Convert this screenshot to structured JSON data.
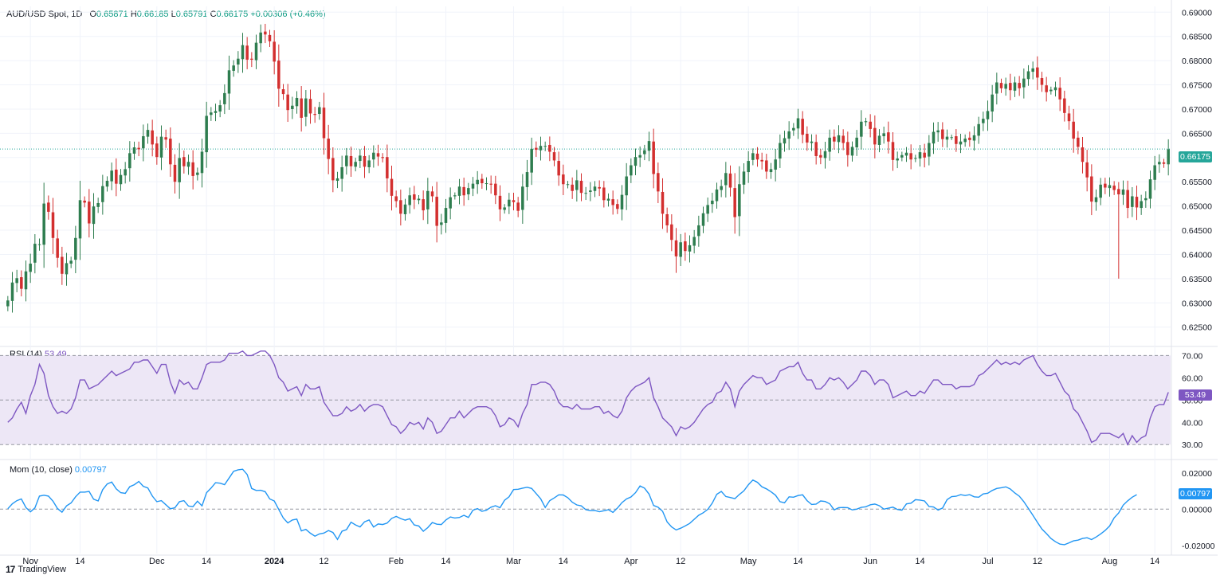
{
  "header": {
    "symbol": "AUD/USD Spot, 1D",
    "open_label": "O",
    "open": "0.65871",
    "high_label": "H",
    "high": "0.66185",
    "low_label": "L",
    "low": "0.65791",
    "close_label": "C",
    "close": "0.66175",
    "change": "+0.00306 (+0.46%)"
  },
  "rsi_header": {
    "label": "RSI (14)",
    "value": "53.49"
  },
  "mom_header": {
    "label": "Mom (10, close)",
    "value": "0.00797"
  },
  "last_price_tag": "0.66175",
  "rsi_tag": "53.49",
  "mom_tag": "0.00797",
  "branding": "TradingView",
  "colors": {
    "up": "#26a69a",
    "up_dark": "#2e7d4f",
    "down": "#ef5350",
    "down_dark": "#d32f2f",
    "rsi": "#7e57c2",
    "rsi_band": "#ede7f6",
    "mom": "#2196f3",
    "grid": "#f0f3fa",
    "axis_text": "#131722"
  },
  "chart_data": [
    {
      "type": "candlestick",
      "title": "AUD/USD Spot, 1D",
      "y_ticks": [
        "0.69000",
        "0.68500",
        "0.68000",
        "0.67500",
        "0.67000",
        "0.66500",
        "0.66000",
        "0.65500",
        "0.65000",
        "0.64500",
        "0.64000",
        "0.63500",
        "0.63000",
        "0.62500"
      ],
      "ylim": [
        0.6215,
        0.6912
      ],
      "x_ticks": [
        "Nov",
        "14",
        "Dec",
        "14",
        "2024",
        "12",
        "Feb",
        "14",
        "Mar",
        "14",
        "Apr",
        "12",
        "May",
        "14",
        "Jun",
        "14",
        "Jul",
        "12",
        "Aug",
        "14"
      ],
      "x_tick_bar_index": [
        5,
        16,
        33,
        44,
        59,
        70,
        86,
        97,
        112,
        123,
        138,
        149,
        164,
        175,
        191,
        202,
        217,
        228,
        244,
        254
      ],
      "last_price": 0.66175,
      "closes": [
        0.6305,
        0.6342,
        0.6351,
        0.6329,
        0.6365,
        0.6381,
        0.6422,
        0.6421,
        0.6505,
        0.6488,
        0.6434,
        0.6393,
        0.636,
        0.6382,
        0.6387,
        0.6434,
        0.6512,
        0.6507,
        0.6464,
        0.6499,
        0.6506,
        0.6541,
        0.6552,
        0.6573,
        0.6546,
        0.6564,
        0.6576,
        0.6609,
        0.6621,
        0.6617,
        0.6644,
        0.6657,
        0.6627,
        0.6601,
        0.6643,
        0.6637,
        0.6586,
        0.655,
        0.6599,
        0.6582,
        0.6591,
        0.6562,
        0.6569,
        0.6612,
        0.6686,
        0.6693,
        0.6696,
        0.6708,
        0.6733,
        0.678,
        0.679,
        0.6804,
        0.6832,
        0.6802,
        0.6802,
        0.6837,
        0.6858,
        0.6854,
        0.684,
        0.6798,
        0.6742,
        0.6731,
        0.6698,
        0.6707,
        0.6723,
        0.6682,
        0.6722,
        0.6691,
        0.6688,
        0.6704,
        0.664,
        0.6597,
        0.6553,
        0.6557,
        0.658,
        0.6604,
        0.6582,
        0.6591,
        0.6604,
        0.6581,
        0.6594,
        0.661,
        0.6602,
        0.6599,
        0.6557,
        0.6521,
        0.651,
        0.6484,
        0.6503,
        0.6522,
        0.6513,
        0.6515,
        0.6491,
        0.6531,
        0.652,
        0.6459,
        0.6466,
        0.6496,
        0.6518,
        0.6522,
        0.654,
        0.6522,
        0.6537,
        0.6546,
        0.6554,
        0.6547,
        0.6547,
        0.6544,
        0.6522,
        0.6493,
        0.6497,
        0.6513,
        0.6508,
        0.649,
        0.654,
        0.657,
        0.6618,
        0.6616,
        0.6624,
        0.6624,
        0.6612,
        0.6594,
        0.6563,
        0.6545,
        0.6545,
        0.6531,
        0.6553,
        0.6527,
        0.6527,
        0.6532,
        0.654,
        0.6536,
        0.6512,
        0.6515,
        0.6502,
        0.6494,
        0.6523,
        0.6561,
        0.6584,
        0.6601,
        0.6605,
        0.6615,
        0.6634,
        0.6566,
        0.653,
        0.6484,
        0.646,
        0.643,
        0.6396,
        0.6425,
        0.6407,
        0.6419,
        0.6436,
        0.646,
        0.6485,
        0.6502,
        0.6511,
        0.6534,
        0.6541,
        0.6568,
        0.6538,
        0.6477,
        0.6545,
        0.6571,
        0.6593,
        0.6609,
        0.6596,
        0.6592,
        0.6571,
        0.6576,
        0.6596,
        0.663,
        0.664,
        0.6654,
        0.6661,
        0.6681,
        0.6647,
        0.6631,
        0.6633,
        0.6603,
        0.66,
        0.6613,
        0.6641,
        0.6633,
        0.6646,
        0.663,
        0.6605,
        0.6622,
        0.6641,
        0.6674,
        0.6675,
        0.6659,
        0.6627,
        0.6645,
        0.665,
        0.6633,
        0.6595,
        0.6598,
        0.6605,
        0.661,
        0.6596,
        0.6599,
        0.6611,
        0.66,
        0.663,
        0.6653,
        0.6656,
        0.6638,
        0.6643,
        0.6642,
        0.6628,
        0.6633,
        0.6639,
        0.6636,
        0.6646,
        0.6669,
        0.668,
        0.6696,
        0.673,
        0.6755,
        0.6743,
        0.6752,
        0.6739,
        0.6755,
        0.6743,
        0.6763,
        0.6778,
        0.6784,
        0.6765,
        0.675,
        0.6735,
        0.674,
        0.6745,
        0.672,
        0.6692,
        0.6675,
        0.6639,
        0.6622,
        0.6591,
        0.6559,
        0.6509,
        0.6518,
        0.6544,
        0.6538,
        0.6543,
        0.6533,
        0.6524,
        0.6534,
        0.6496,
        0.652,
        0.6497,
        0.651,
        0.6516,
        0.6555,
        0.6584,
        0.6591,
        0.6587,
        0.6617
      ]
    },
    {
      "type": "line",
      "title": "RSI (14)",
      "last_value": 53.49,
      "band": [
        30,
        70
      ],
      "midline": 50,
      "ylim": [
        24,
        73
      ],
      "y_ticks": [
        "70.00",
        "60.00",
        "50.00",
        "40.00",
        "30.00"
      ],
      "values": [
        40,
        42,
        46,
        49,
        44,
        52,
        57,
        66,
        62,
        52,
        47,
        44,
        45,
        44,
        46,
        51,
        59,
        59,
        55,
        56,
        57,
        59,
        61,
        63,
        61,
        62,
        63,
        64,
        67,
        67,
        68,
        68,
        65,
        62,
        66,
        66,
        58,
        53,
        59,
        57,
        58,
        55,
        55,
        60,
        66,
        67,
        67,
        67,
        68,
        71,
        71,
        71,
        72,
        70,
        70,
        71,
        72,
        72,
        70,
        66,
        60,
        58,
        54,
        55,
        56,
        52,
        57,
        55,
        55,
        56,
        49,
        46,
        43,
        43,
        44,
        47,
        45,
        46,
        48,
        45,
        47,
        48,
        48,
        47,
        43,
        39,
        38,
        35,
        37,
        40,
        39,
        40,
        37,
        42,
        40,
        35,
        36,
        39,
        42,
        42,
        45,
        42,
        44,
        46,
        47,
        47,
        47,
        46,
        43,
        38,
        39,
        42,
        41,
        38,
        44,
        48,
        57,
        57,
        58,
        58,
        57,
        54,
        49,
        47,
        47,
        46,
        48,
        46,
        46,
        46,
        47,
        47,
        44,
        45,
        43,
        42,
        45,
        51,
        54,
        56,
        57,
        58,
        60,
        51,
        47,
        42,
        40,
        38,
        34,
        38,
        37,
        38,
        40,
        43,
        46,
        48,
        49,
        53,
        54,
        58,
        55,
        47,
        54,
        57,
        59,
        61,
        60,
        60,
        57,
        58,
        59,
        63,
        64,
        65,
        65,
        67,
        62,
        59,
        59,
        55,
        55,
        57,
        60,
        59,
        60,
        58,
        55,
        57,
        59,
        63,
        63,
        61,
        57,
        59,
        59,
        57,
        51,
        52,
        53,
        54,
        52,
        52,
        54,
        53,
        56,
        59,
        59,
        57,
        57,
        57,
        55,
        56,
        56,
        56,
        57,
        61,
        62,
        64,
        66,
        68,
        66,
        67,
        66,
        67,
        66,
        68,
        69,
        70,
        66,
        63,
        61,
        61,
        62,
        58,
        54,
        52,
        46,
        44,
        40,
        36,
        31,
        32,
        35,
        35,
        35,
        34,
        33,
        35,
        30,
        34,
        31,
        33,
        34,
        42,
        47,
        48,
        48,
        53.49
      ]
    },
    {
      "type": "line",
      "title": "Mom (10, close)",
      "last_value": 0.00797,
      "zero_line": 0,
      "ylim": [
        -0.0245,
        0.0265
      ],
      "y_ticks": [
        "0.02000",
        "0.00000",
        "-0.02000"
      ],
      "values": [
        0.0002,
        0.003,
        0.0047,
        0.0056,
        0.0009,
        -0.0015,
        0.0007,
        0.0072,
        0.0077,
        0.0072,
        0.0044,
        0.0003,
        -0.0017,
        0.0018,
        0.0034,
        0.0068,
        0.0094,
        0.0094,
        0.0098,
        0.0055,
        0.0045,
        0.0107,
        0.0139,
        0.015,
        0.0112,
        0.0091,
        0.0087,
        0.0124,
        0.0135,
        0.0153,
        0.0126,
        0.0117,
        0.0072,
        0.0041,
        0.0047,
        0.0024,
        0.0002,
        0.0008,
        0.0041,
        0.0047,
        0.0017,
        0.0014,
        0.0044,
        0.0018,
        0.0091,
        0.0116,
        0.0146,
        0.0143,
        0.0135,
        0.0172,
        0.0209,
        0.0217,
        0.022,
        0.0191,
        0.0114,
        0.0103,
        0.0104,
        0.0096,
        0.0056,
        0.0045,
        -0.0002,
        -0.0049,
        -0.0076,
        -0.006,
        -0.0055,
        -0.012,
        -0.0112,
        -0.0133,
        -0.0149,
        -0.0137,
        -0.0132,
        -0.0118,
        -0.0129,
        -0.0167,
        -0.0122,
        -0.0113,
        -0.0072,
        -0.0087,
        -0.0098,
        -0.007,
        -0.006,
        -0.0099,
        -0.0082,
        -0.0085,
        -0.0077,
        -0.0051,
        -0.004,
        -0.0052,
        -0.0061,
        -0.0053,
        -0.0087,
        -0.0093,
        -0.0122,
        -0.0102,
        -0.0074,
        -0.0083,
        -0.0085,
        -0.006,
        -0.0043,
        -0.0049,
        -0.0046,
        -0.0034,
        -0.0046,
        -0.0006,
        0.0003,
        -0.0012,
        -0.0006,
        0.0011,
        0.0019,
        0.0008,
        0.0049,
        0.0068,
        0.0108,
        0.011,
        0.0116,
        0.0121,
        0.0114,
        0.0086,
        0.0057,
        0.0009,
        0.0047,
        0.0062,
        0.0079,
        0.0078,
        0.0063,
        0.0038,
        0.0023,
        0.0018,
        -0.0003,
        -0.0008,
        -0.0007,
        -0.0014,
        -0.0009,
        -0.0003,
        -0.0018,
        0.0006,
        0.0036,
        0.0056,
        0.0067,
        0.0091,
        0.0128,
        0.0116,
        0.0083,
        0.002,
        0.0011,
        -0.0012,
        -0.0071,
        -0.0098,
        -0.0115,
        -0.0105,
        -0.0093,
        -0.0079,
        -0.0056,
        -0.0034,
        -0.002,
        -0.0001,
        0.0033,
        0.0082,
        0.0098,
        0.007,
        0.0064,
        0.0058,
        0.0081,
        0.0101,
        0.0135,
        0.0161,
        0.0148,
        0.0123,
        0.0112,
        0.0096,
        0.0077,
        0.0041,
        0.0035,
        0.0068,
        0.0066,
        0.0075,
        0.0079,
        0.0047,
        0.0026,
        0.0028,
        0.0045,
        0.0042,
        0.003,
        -0.0004,
        0.0008,
        0.0009,
        0.0008,
        -0.0004,
        0.0,
        0.001,
        0.0013,
        0.0024,
        0.0028,
        0.0019,
        0.0,
        0.0005,
        0.0011,
        -0.0002,
        -0.0006,
        0.0029,
        0.0033,
        0.0052,
        0.005,
        0.0045,
        0.0015,
        0.0012,
        -0.0005,
        0.0006,
        0.0052,
        0.0069,
        0.0071,
        0.008,
        0.0075,
        0.008,
        0.0068,
        0.0066,
        0.0084,
        0.0088,
        0.0103,
        0.0114,
        0.0118,
        0.0123,
        0.0111,
        0.0089,
        0.0071,
        0.0041,
        0.0004,
        -0.0034,
        -0.0072,
        -0.011,
        -0.0135,
        -0.0162,
        -0.018,
        -0.0193,
        -0.0196,
        -0.0186,
        -0.0175,
        -0.0171,
        -0.0162,
        -0.0158,
        -0.0168,
        -0.0154,
        -0.0137,
        -0.0118,
        -0.0093,
        -0.0048,
        -0.0021,
        0.0022,
        0.0046,
        0.0066,
        0.00797
      ]
    }
  ]
}
